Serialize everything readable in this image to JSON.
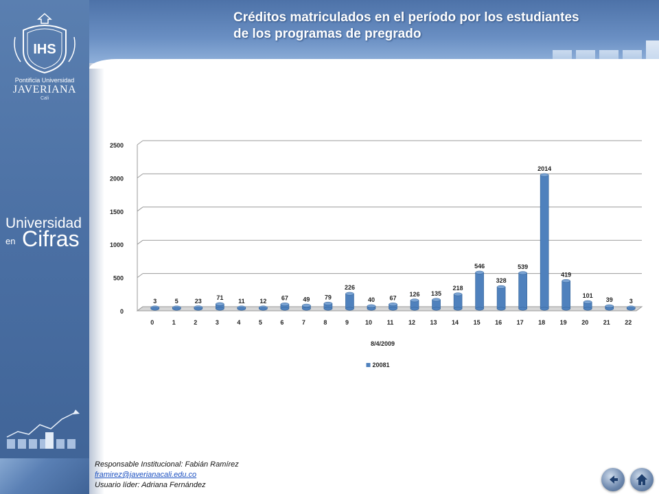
{
  "header": {
    "title_line1": "Créditos matriculados en el período por  los  estudiantes",
    "title_line2": "de los programas de pregrado"
  },
  "sidebar": {
    "university_line1": "Pontificia Universidad",
    "university_line2": "JAVERIANA",
    "university_line3": "Cali",
    "brand_line1": "Universidad",
    "brand_line2": "en",
    "brand_line3": "Cifras"
  },
  "chart_data": {
    "type": "bar",
    "categories": [
      "0",
      "1",
      "2",
      "3",
      "4",
      "5",
      "6",
      "7",
      "8",
      "9",
      "10",
      "11",
      "12",
      "13",
      "14",
      "15",
      "16",
      "17",
      "18",
      "19",
      "20",
      "21",
      "22"
    ],
    "series": [
      {
        "name": "20081",
        "values": [
          3,
          5,
          23,
          71,
          11,
          12,
          67,
          49,
          79,
          226,
          40,
          67,
          126,
          135,
          218,
          546,
          328,
          539,
          2014,
          419,
          101,
          39,
          3
        ]
      }
    ],
    "xlabel": "8/4/2009",
    "ylabel": "",
    "ylim": [
      0,
      2500
    ],
    "yticks": [
      0,
      500,
      1000,
      1500,
      2000,
      2500
    ],
    "grid": true,
    "legend": "bottom",
    "bar_color": "#4f81bd"
  },
  "footer": {
    "responsible": "Responsable  Institucional: Fabián Ramírez",
    "email": "framirez@javerianacali.edu.co",
    "leader": "Usuario líder: Adriana Fernández"
  },
  "nav": {
    "back_icon": "back-arrow-icon",
    "home_icon": "home-icon"
  }
}
